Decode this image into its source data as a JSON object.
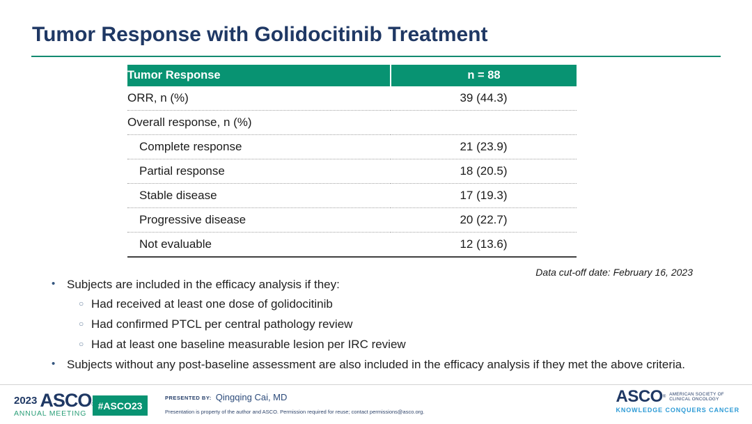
{
  "slide": {
    "title": "Tumor Response with Golidocitinib Treatment",
    "cutoff_note": "Data cut-off date: February 16, 2023"
  },
  "table": {
    "header": {
      "col1": "Tumor Response",
      "col2": "n = 88"
    },
    "rows": [
      {
        "label": "ORR, n (%)",
        "value": "39 (44.3)"
      },
      {
        "label": "Overall response, n (%)",
        "value": ""
      },
      {
        "label": "Complete response",
        "value": "21 (23.9)"
      },
      {
        "label": "Partial response",
        "value": "18 (20.5)"
      },
      {
        "label": "Stable disease",
        "value": "17 (19.3)"
      },
      {
        "label": "Progressive disease",
        "value": "20 (22.7)"
      },
      {
        "label": "Not evaluable",
        "value": "12 (13.6)"
      }
    ]
  },
  "bullets": [
    {
      "text": "Subjects are included in the efficacy analysis if they:"
    },
    {
      "text": "Had received at least one dose of golidocitinib"
    },
    {
      "text": "Had confirmed PTCL per central pathology review"
    },
    {
      "text": "Had at least one baseline measurable lesion per IRC review"
    },
    {
      "text": "Subjects without any post-baseline assessment are also included in the efficacy analysis if they met the above criteria."
    }
  ],
  "glyphs": {
    "bullet": "•",
    "circle": "○",
    "reg": "®"
  },
  "footer": {
    "meeting_year": "2023",
    "meeting_wordmark": "ASCO",
    "meeting_sub": "ANNUAL MEETING",
    "hashtag": "#ASCO23",
    "presented_by_label": "PRESENTED BY:",
    "presenter": "Qingqing Cai, MD",
    "disclaimer": "Presentation is property of the author and ASCO. Permission required for reuse; contact permissions@asco.org.",
    "asco_wordmark": "ASCO",
    "asco_society_line1": "AMERICAN SOCIETY OF",
    "asco_society_line2": "CLINICAL ONCOLOGY",
    "asco_tagline": "KNOWLEDGE CONQUERS CANCER"
  },
  "colors": {
    "navy": "#1f3864",
    "green": "#089372",
    "annual_green": "#2a9e77",
    "light_blue": "#2e9bd6"
  }
}
